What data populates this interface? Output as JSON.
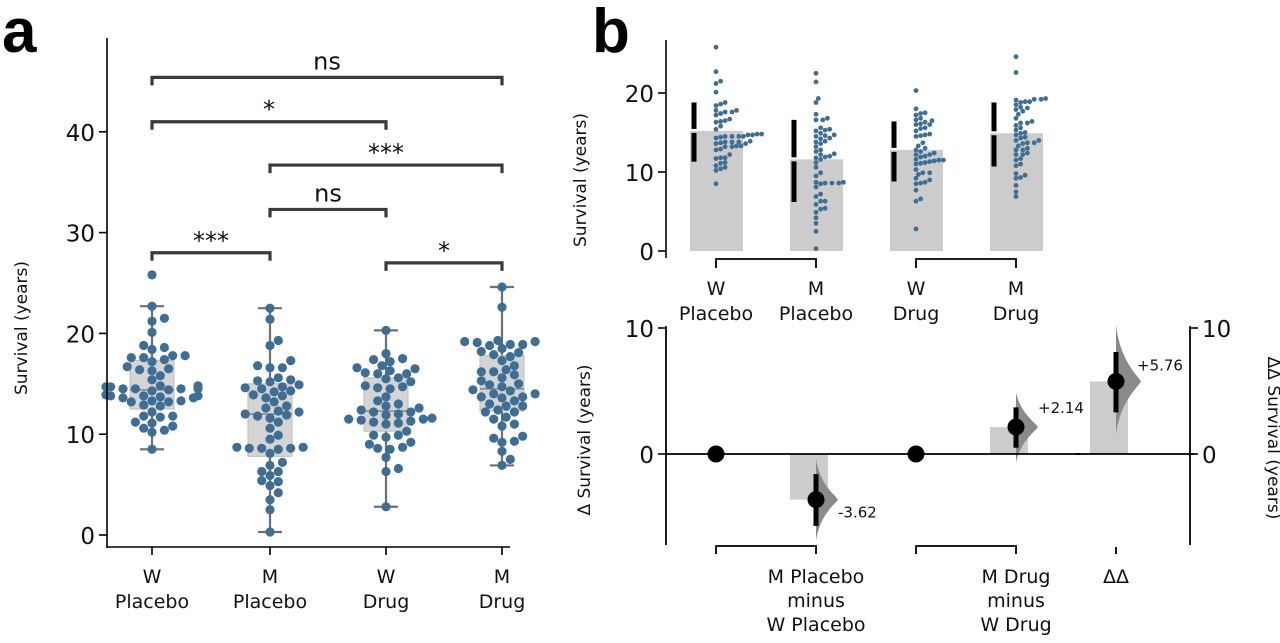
{
  "figure": {
    "panel_a_letter": "a",
    "panel_b_letter": "b"
  },
  "colors": {
    "point": "#3f6e94",
    "box": "#d4d4d4",
    "box_edge": "#bdbdbd",
    "whisker": "#6f6f6f",
    "bracket": "#3a3a3a",
    "bar": "#cccccc",
    "dist": "#8a8a8a",
    "axis": "#000000"
  },
  "chart_data": [
    {
      "id": "panel-a",
      "type": "box+swarm",
      "title": "",
      "xlabel": "",
      "ylabel": "Survival (years)",
      "ylim": [
        -1,
        46
      ],
      "yticks": [
        0,
        10,
        20,
        30,
        40
      ],
      "categories": [
        {
          "line1": "W",
          "line2": "Placebo"
        },
        {
          "line1": "M",
          "line2": "Placebo"
        },
        {
          "line1": "W",
          "line2": "Drug"
        },
        {
          "line1": "M",
          "line2": "Drug"
        }
      ],
      "boxes": [
        {
          "q1": 12.5,
          "median": 14.4,
          "q3": 17.3,
          "whisker_low": 8.5,
          "whisker_high": 22.7
        },
        {
          "q1": 7.8,
          "median": 12.0,
          "q3": 15.0,
          "whisker_low": 0.3,
          "whisker_high": 22.5
        },
        {
          "q1": 10.3,
          "median": 12.3,
          "q3": 15.6,
          "whisker_low": 2.8,
          "whisker_high": 20.3
        },
        {
          "q1": 12.3,
          "median": 14.5,
          "q3": 17.8,
          "whisker_low": 6.9,
          "whisker_high": 24.6
        }
      ],
      "points": [
        [
          25.8,
          22.7,
          21.5,
          21.2,
          20.1,
          18.8,
          18.6,
          18.4,
          17.8,
          17.8,
          17.6,
          17.6,
          17.4,
          17.2,
          16.7,
          16.4,
          16.3,
          16.5,
          15.8,
          15.4,
          14.8,
          14.7,
          14.7,
          14.5,
          14.5,
          14.5,
          14.4,
          14.3,
          14.5,
          14.8,
          13.8,
          13.6,
          13.6,
          13.7,
          13.8,
          13.8,
          13.9,
          13.2,
          13.3,
          13.3,
          13.2,
          12.8,
          12.9,
          12.2,
          11.8,
          11.7,
          11.8,
          11.2,
          11.1,
          10.8,
          10.6,
          10.4,
          10.2,
          8.5
        ],
        [
          22.5,
          21.4,
          19.3,
          18.8,
          17.3,
          16.6,
          16.6,
          16.8,
          15.6,
          15.4,
          15.3,
          15.2,
          14.9,
          14.7,
          14.6,
          14.5,
          14.3,
          14.2,
          13.9,
          13.8,
          13.6,
          13.2,
          12.8,
          12.6,
          12.3,
          12.2,
          12.0,
          11.8,
          11.9,
          11.6,
          11.2,
          10.6,
          9.9,
          9.5,
          8.7,
          8.6,
          8.6,
          8.5,
          8.6,
          8.7,
          8.1,
          7.2,
          6.9,
          6.3,
          6.3,
          5.9,
          5.4,
          5.3,
          4.9,
          4.2,
          3.5,
          2.5,
          0.3
        ],
        [
          20.3,
          18.0,
          17.5,
          17.4,
          17.2,
          16.8,
          16.5,
          16.6,
          16.3,
          16.1,
          16.0,
          16.0,
          15.6,
          15.5,
          15.2,
          14.8,
          14.7,
          14.6,
          14.5,
          13.7,
          13.3,
          13.0,
          12.8,
          12.6,
          12.4,
          12.2,
          12.2,
          12.0,
          11.9,
          11.6,
          11.5,
          11.5,
          11.4,
          11.2,
          11.3,
          11.0,
          11.1,
          10.3,
          9.9,
          9.9,
          9.7,
          9.2,
          9.0,
          8.7,
          8.6,
          8.5,
          7.7,
          6.6,
          6.3,
          2.8
        ],
        [
          24.6,
          22.6,
          19.3,
          19.2,
          19.2,
          19.1,
          18.9,
          18.9,
          18.8,
          18.5,
          18.2,
          18.1,
          17.9,
          17.7,
          17.3,
          16.8,
          16.4,
          16.2,
          16.2,
          15.9,
          15.6,
          15.3,
          15.0,
          14.9,
          14.7,
          14.4,
          14.3,
          14.0,
          14.0,
          13.7,
          13.6,
          13.7,
          13.3,
          13.0,
          12.8,
          12.8,
          12.4,
          12.2,
          12.2,
          11.7,
          11.5,
          11.0,
          10.8,
          9.8,
          9.6,
          9.2,
          9.3,
          8.3,
          7.5,
          6.9
        ]
      ],
      "comparisons": [
        {
          "from": 0,
          "to": 1,
          "label": "***",
          "y": 28.0
        },
        {
          "from": 2,
          "to": 3,
          "label": "*",
          "y": 27.0
        },
        {
          "from": 1,
          "to": 2,
          "label": "ns",
          "y": 32.3
        },
        {
          "from": 1,
          "to": 3,
          "label": "***",
          "y": 36.7
        },
        {
          "from": 0,
          "to": 2,
          "label": "*",
          "y": 41.0
        },
        {
          "from": 0,
          "to": 3,
          "label": "ns",
          "y": 45.4
        }
      ]
    },
    {
      "id": "panel-b-top",
      "type": "bar+swarm",
      "ylabel": "Survival (years)",
      "ylim": [
        0,
        26
      ],
      "yticks": [
        0,
        10,
        20
      ],
      "categories": [
        {
          "line1": "W",
          "line2": "Placebo"
        },
        {
          "line1": "M",
          "line2": "Placebo"
        },
        {
          "line1": "W",
          "line2": "Drug"
        },
        {
          "line1": "M",
          "line2": "Drug"
        }
      ],
      "means": [
        15.2,
        11.6,
        12.8,
        14.9
      ],
      "sd_low": [
        11.3,
        6.2,
        8.8,
        10.7
      ],
      "sd_high": [
        18.8,
        16.6,
        16.4,
        18.8
      ],
      "group_pairs": [
        [
          0,
          1
        ],
        [
          2,
          3
        ]
      ]
    },
    {
      "id": "panel-b-bottom",
      "type": "delta-delta",
      "ylabel_left": "Δ Survival (years)",
      "ylabel_right": "ΔΔ Survival (years)",
      "ylim": [
        -7,
        10
      ],
      "yticks": [
        0,
        10
      ],
      "contrasts": [
        {
          "label_lines": [
            "M Placebo",
            "minus",
            "W Placebo"
          ],
          "effect": -3.62,
          "ci_low": -5.7,
          "ci_high": -1.6,
          "text": "-3.62"
        },
        {
          "label_lines": [
            "M Drug",
            "minus",
            "W Drug"
          ],
          "effect": 2.14,
          "ci_low": 0.5,
          "ci_high": 3.7,
          "text": "+2.14"
        }
      ],
      "delta_delta": {
        "label": "ΔΔ",
        "effect": 5.76,
        "ci_low": 3.3,
        "ci_high": 8.1,
        "text": "+5.76"
      }
    }
  ]
}
